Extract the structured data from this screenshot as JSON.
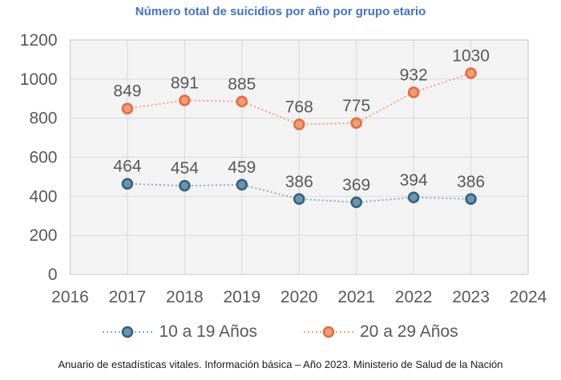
{
  "title": "Número total de suicidios por año por grupo etario",
  "footer": "Anuario de estadísticas vitales. Información básica – Año 2023. Ministerio de Salud de la Nación",
  "chart_data": {
    "type": "line",
    "x": [
      2017,
      2018,
      2019,
      2020,
      2021,
      2022,
      2023
    ],
    "series": [
      {
        "name": "10 a 19 Años",
        "values": [
          464,
          454,
          459,
          386,
          369,
          394,
          386
        ],
        "line_color": "#8aabc0",
        "marker_fill": "#6e93ac",
        "marker_stroke": "#31617f"
      },
      {
        "name": "20 a 29 Años",
        "values": [
          849,
          891,
          885,
          768,
          775,
          932,
          1030
        ],
        "line_color": "#f0a185",
        "marker_fill": "#f09c74",
        "marker_stroke": "#e26b45"
      }
    ],
    "xticks": [
      2016,
      2017,
      2018,
      2019,
      2020,
      2021,
      2022,
      2023,
      2024
    ],
    "yticks": [
      0,
      200,
      400,
      600,
      800,
      1000,
      1200
    ],
    "xlim": [
      2016,
      2024
    ],
    "ylim": [
      0,
      1200
    ],
    "grid": true,
    "line_style": "dotted",
    "data_labels": true,
    "legend_position": "bottom",
    "title": "Número total de suicidios por año por grupo etario",
    "xlabel": "",
    "ylabel": ""
  },
  "colors": {
    "title": "#4472c4",
    "axis_text": "#595959",
    "data_label_text": "#595959",
    "grid": "#d9d9d9",
    "plot_border": "#cfcfcf",
    "plot_bg": "#f3f3f3",
    "page_bg": "#ffffff"
  }
}
